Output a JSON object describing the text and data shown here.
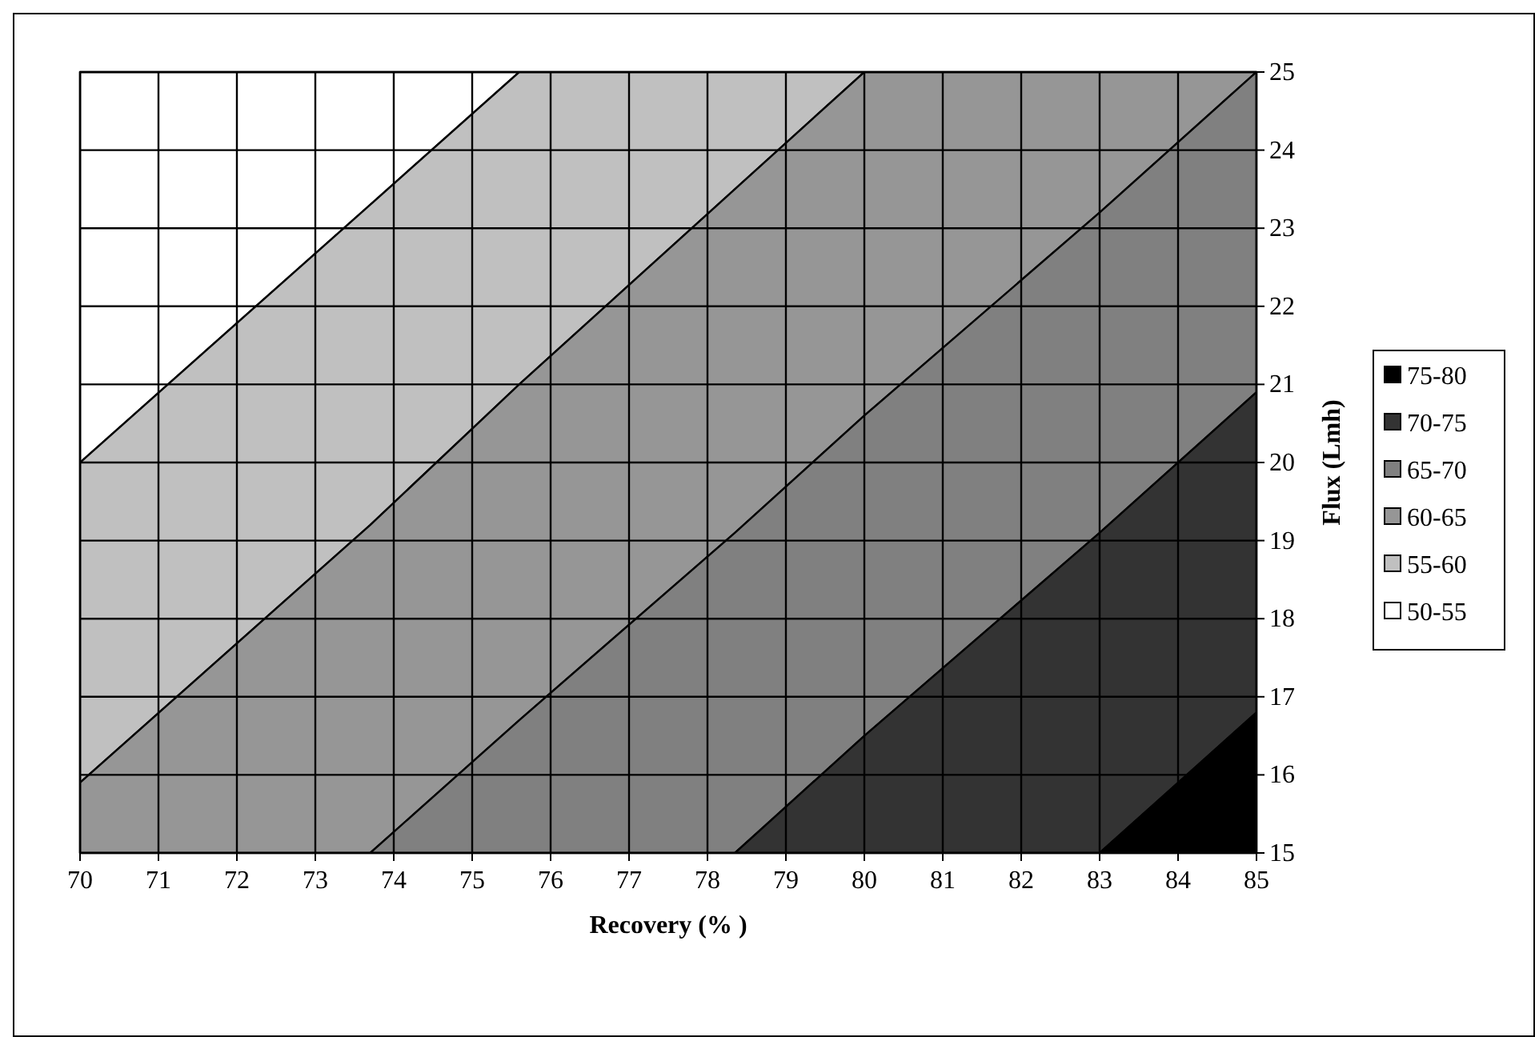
{
  "chart_data": {
    "type": "area",
    "xlabel": "Recovery (% )",
    "ylabel": "Flux (Lmh)",
    "x": [
      70,
      73.7,
      75.6,
      78.35,
      80,
      83,
      85
    ],
    "xlim": [
      70,
      85
    ],
    "xticks": [
      70,
      71,
      72,
      73,
      74,
      75,
      76,
      77,
      78,
      79,
      80,
      81,
      82,
      83,
      84,
      85
    ],
    "ylim": [
      15,
      25
    ],
    "yticks": [
      15,
      16,
      17,
      18,
      19,
      20,
      21,
      22,
      23,
      24,
      25
    ],
    "grid": true,
    "legend": "right",
    "series": [
      {
        "name": "50-55",
        "color": "#ffffff",
        "values": [
          25,
          25,
          25,
          25,
          25,
          25,
          25
        ]
      },
      {
        "name": "55-60",
        "color": "#c0c0c0",
        "values": [
          20,
          23.3,
          25,
          25,
          25,
          25,
          25
        ]
      },
      {
        "name": "60-65",
        "color": "#969696",
        "values": [
          15.9,
          19.2,
          21,
          23.5,
          25,
          25,
          25
        ]
      },
      {
        "name": "65-70",
        "color": "#808080",
        "x": [
          73.7,
          75.6,
          78.35,
          80,
          83,
          85
        ],
        "values": [
          15,
          16.7,
          19.1,
          20.6,
          23.2,
          25
        ]
      },
      {
        "name": "70-75",
        "color": "#333333",
        "x": [
          78.35,
          80,
          83,
          85
        ],
        "values": [
          15,
          16.5,
          19.1,
          20.9
        ]
      },
      {
        "name": "75-80",
        "color": "#000000",
        "x": [
          83,
          85
        ],
        "values": [
          15,
          16.8
        ]
      }
    ]
  }
}
